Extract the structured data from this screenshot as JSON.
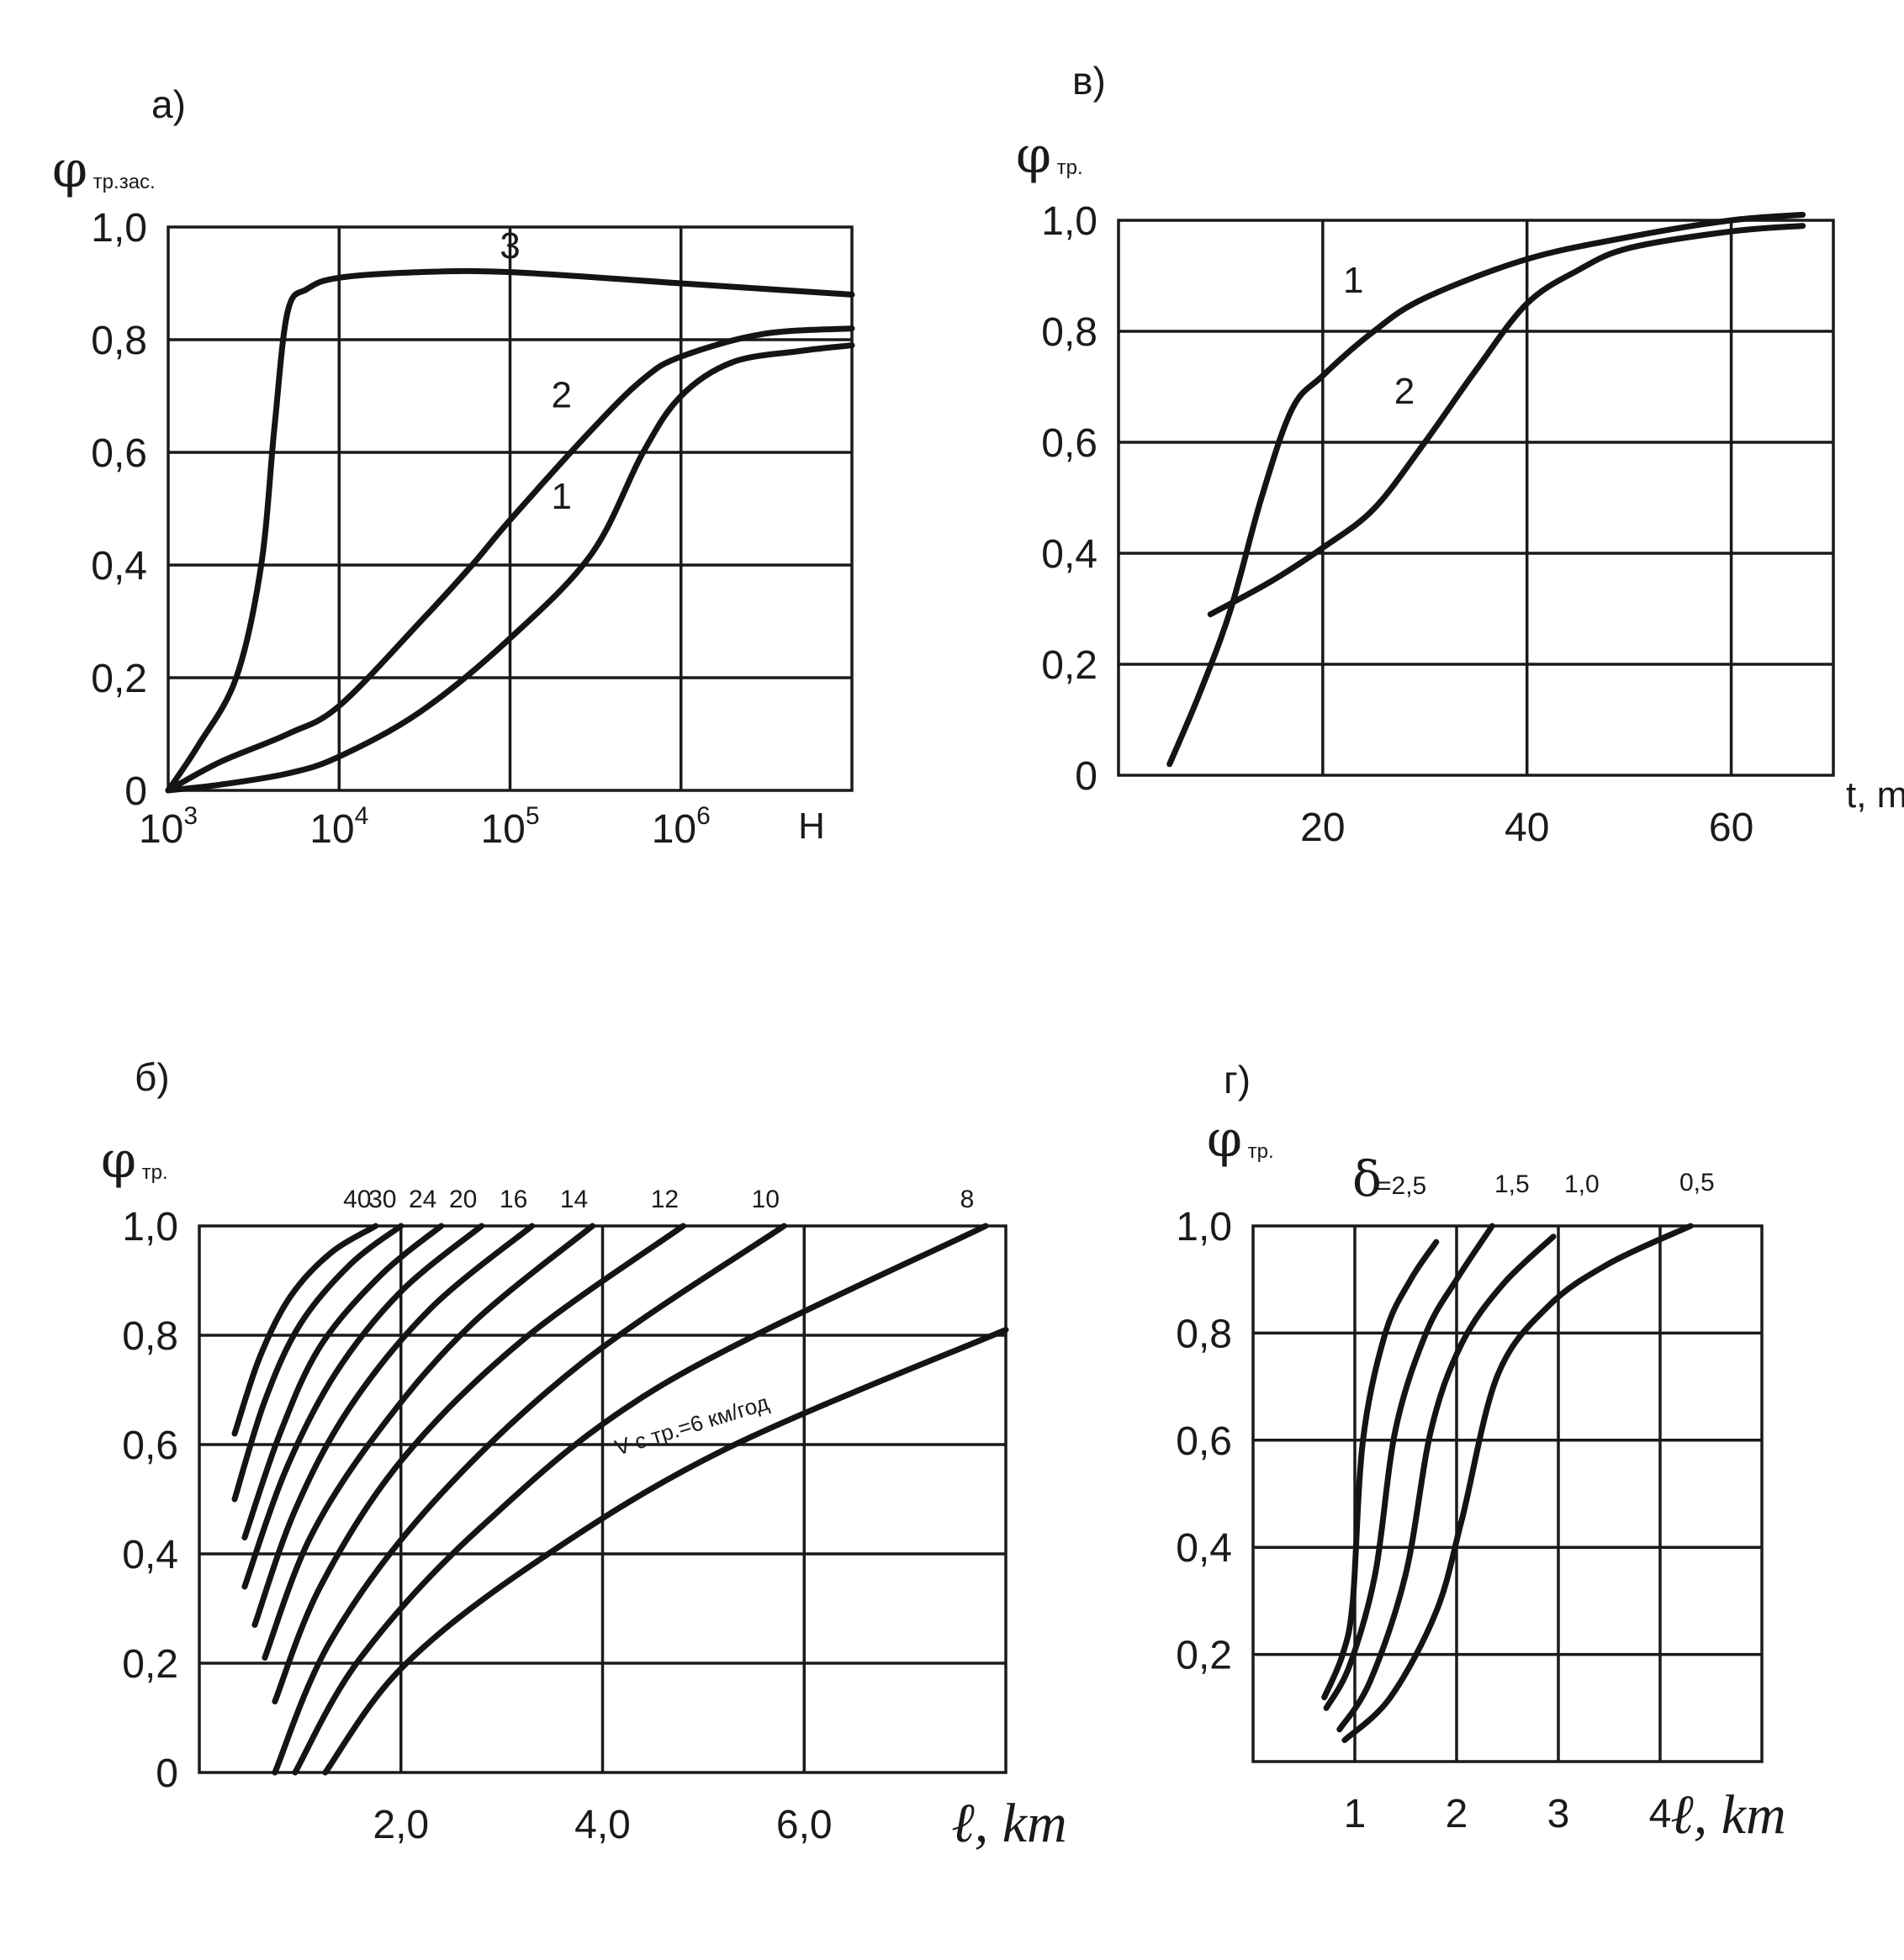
{
  "chart_data": [
    {
      "id": "a",
      "panel_label": "а)",
      "type": "line",
      "ylabel": "φ",
      "ylabel_sub": "тр.зас.",
      "xlabel": "Н",
      "x_scale": "log",
      "xlim": [
        1000,
        10000000
      ],
      "ylim": [
        0,
        1.0
      ],
      "grid": true,
      "x_ticks": [
        {
          "value": 1000,
          "base": "10",
          "exp": "3"
        },
        {
          "value": 10000,
          "base": "10",
          "exp": "4"
        },
        {
          "value": 100000,
          "base": "10",
          "exp": "5"
        },
        {
          "value": 1000000,
          "base": "10",
          "exp": "6"
        }
      ],
      "y_ticks": [
        {
          "value": 0,
          "label": "0"
        },
        {
          "value": 0.2,
          "label": "0,2"
        },
        {
          "value": 0.4,
          "label": "0,4"
        },
        {
          "value": 0.6,
          "label": "0,6"
        },
        {
          "value": 0.8,
          "label": "0,8"
        },
        {
          "value": 1.0,
          "label": "1,0"
        }
      ],
      "series": [
        {
          "name": "1",
          "x": [
            1000,
            2000,
            5000,
            10000,
            30000,
            100000,
            300000,
            600000,
            1000000,
            2000000,
            5000000,
            10000000
          ],
          "y": [
            0,
            0.01,
            0.03,
            0.06,
            0.14,
            0.27,
            0.42,
            0.6,
            0.7,
            0.76,
            0.78,
            0.79
          ]
        },
        {
          "name": "2",
          "x": [
            1000,
            2000,
            5000,
            10000,
            30000,
            60000,
            100000,
            300000,
            600000,
            1000000,
            3000000,
            10000000
          ],
          "y": [
            0,
            0.05,
            0.1,
            0.15,
            0.3,
            0.4,
            0.48,
            0.64,
            0.73,
            0.77,
            0.81,
            0.82
          ]
        },
        {
          "name": "3",
          "x": [
            1000,
            1500,
            2500,
            3500,
            4200,
            5000,
            6500,
            10000,
            30000,
            100000,
            1000000,
            10000000
          ],
          "y": [
            0,
            0.08,
            0.2,
            0.4,
            0.65,
            0.85,
            0.89,
            0.91,
            0.92,
            0.92,
            0.9,
            0.88
          ]
        }
      ]
    },
    {
      "id": "v",
      "panel_label": "в)",
      "type": "line",
      "ylabel": "φ",
      "ylabel_sub": "тр.",
      "xlabel": "t, min",
      "xlim": [
        0,
        70
      ],
      "ylim": [
        0,
        1.0
      ],
      "grid": true,
      "x_ticks": [
        {
          "value": 20,
          "label": "20"
        },
        {
          "value": 40,
          "label": "40"
        },
        {
          "value": 60,
          "label": "60"
        }
      ],
      "y_ticks": [
        {
          "value": 0,
          "label": "0"
        },
        {
          "value": 0.2,
          "label": "0,2"
        },
        {
          "value": 0.4,
          "label": "0,4"
        },
        {
          "value": 0.6,
          "label": "0,6"
        },
        {
          "value": 0.8,
          "label": "0,8"
        },
        {
          "value": 1.0,
          "label": "1,0"
        }
      ],
      "series": [
        {
          "name": "1",
          "x": [
            5,
            8,
            11,
            14,
            17,
            20,
            25,
            30,
            40,
            50,
            60,
            67
          ],
          "y": [
            0.02,
            0.15,
            0.3,
            0.5,
            0.66,
            0.72,
            0.8,
            0.86,
            0.93,
            0.97,
            1.0,
            1.01
          ]
        },
        {
          "name": "2",
          "x": [
            9,
            15,
            20,
            25,
            30,
            35,
            40,
            45,
            50,
            60,
            67
          ],
          "y": [
            0.29,
            0.35,
            0.41,
            0.48,
            0.6,
            0.73,
            0.85,
            0.91,
            0.95,
            0.98,
            0.99
          ]
        }
      ]
    },
    {
      "id": "b",
      "panel_label": "б)",
      "type": "line",
      "ylabel": "φ",
      "ylabel_sub": "тр.",
      "xlabel": "ℓ, km",
      "xlim": [
        0,
        8.0
      ],
      "ylim": [
        0,
        1.0
      ],
      "grid": true,
      "x_ticks": [
        {
          "value": 2.0,
          "label": "2,0"
        },
        {
          "value": 4.0,
          "label": "4,0"
        },
        {
          "value": 6.0,
          "label": "6,0"
        }
      ],
      "y_ticks": [
        {
          "value": 0,
          "label": "0"
        },
        {
          "value": 0.2,
          "label": "0,2"
        },
        {
          "value": 0.4,
          "label": "0,4"
        },
        {
          "value": 0.6,
          "label": "0,6"
        },
        {
          "value": 0.8,
          "label": "0,8"
        },
        {
          "value": 1.0,
          "label": "1,0"
        }
      ],
      "annotation": "V с.тр.=6 км/год",
      "series": [
        {
          "name": "40",
          "x": [
            0.35,
            0.6,
            0.9,
            1.3,
            1.75
          ],
          "y": [
            0.62,
            0.76,
            0.87,
            0.95,
            1.0
          ]
        },
        {
          "name": "30",
          "x": [
            0.35,
            0.65,
            1.0,
            1.5,
            2.0
          ],
          "y": [
            0.5,
            0.68,
            0.82,
            0.93,
            1.0
          ]
        },
        {
          "name": "24",
          "x": [
            0.45,
            0.8,
            1.2,
            1.8,
            2.4
          ],
          "y": [
            0.43,
            0.62,
            0.78,
            0.91,
            1.0
          ]
        },
        {
          "name": "20",
          "x": [
            0.45,
            0.85,
            1.35,
            2.0,
            2.8
          ],
          "y": [
            0.34,
            0.55,
            0.73,
            0.88,
            1.0
          ]
        },
        {
          "name": "16",
          "x": [
            0.55,
            0.95,
            1.5,
            2.3,
            3.3
          ],
          "y": [
            0.27,
            0.48,
            0.67,
            0.85,
            1.0
          ]
        },
        {
          "name": "14",
          "x": [
            0.65,
            1.1,
            1.8,
            2.7,
            3.9
          ],
          "y": [
            0.21,
            0.43,
            0.63,
            0.82,
            1.0
          ]
        },
        {
          "name": "12",
          "x": [
            0.75,
            1.2,
            2.0,
            3.2,
            4.8
          ],
          "y": [
            0.13,
            0.34,
            0.57,
            0.79,
            1.0
          ]
        },
        {
          "name": "10",
          "x": [
            0.75,
            1.3,
            2.3,
            3.8,
            5.8
          ],
          "y": [
            0.0,
            0.24,
            0.49,
            0.75,
            1.0
          ]
        },
        {
          "name": "8",
          "x": [
            0.95,
            1.6,
            2.8,
            4.6,
            7.8
          ],
          "y": [
            0.0,
            0.21,
            0.45,
            0.71,
            1.0
          ]
        },
        {
          "name": "6",
          "x": [
            1.25,
            2.0,
            3.3,
            5.2,
            8.0
          ],
          "y": [
            0.0,
            0.19,
            0.38,
            0.59,
            0.81
          ]
        }
      ]
    },
    {
      "id": "g",
      "panel_label": "г)",
      "type": "line",
      "ylabel": "φ",
      "ylabel_sub": "тр.",
      "xlabel": "ℓ, km",
      "legend_symbol": "δ",
      "xlim": [
        0,
        5.0
      ],
      "ylim": [
        0,
        1.0
      ],
      "grid": true,
      "x_ticks": [
        {
          "value": 1,
          "label": "1"
        },
        {
          "value": 2,
          "label": "2"
        },
        {
          "value": 3,
          "label": "3"
        },
        {
          "value": 4,
          "label": "4"
        }
      ],
      "y_ticks": [
        {
          "value": 0.2,
          "label": "0,2"
        },
        {
          "value": 0.4,
          "label": "0,4"
        },
        {
          "value": 0.6,
          "label": "0,6"
        },
        {
          "value": 0.8,
          "label": "0,8"
        },
        {
          "value": 1.0,
          "label": "1,0"
        }
      ],
      "series": [
        {
          "name": "=2,5",
          "x": [
            0.7,
            0.88,
            0.98,
            1.08,
            1.3,
            1.55,
            1.8
          ],
          "y": [
            0.12,
            0.2,
            0.3,
            0.6,
            0.8,
            0.9,
            0.97
          ]
        },
        {
          "name": "1,5",
          "x": [
            0.72,
            0.95,
            1.2,
            1.4,
            1.7,
            2.0,
            2.35
          ],
          "y": [
            0.1,
            0.18,
            0.35,
            0.62,
            0.8,
            0.9,
            1.0
          ]
        },
        {
          "name": "1,0",
          "x": [
            0.85,
            1.15,
            1.5,
            1.75,
            2.05,
            2.45,
            2.95
          ],
          "y": [
            0.06,
            0.15,
            0.35,
            0.62,
            0.78,
            0.89,
            0.98
          ]
        },
        {
          "name": "0,5",
          "x": [
            0.9,
            1.35,
            1.8,
            2.05,
            2.4,
            2.9,
            3.5,
            4.3
          ],
          "y": [
            0.04,
            0.12,
            0.28,
            0.45,
            0.72,
            0.85,
            0.93,
            1.0
          ]
        }
      ]
    }
  ]
}
